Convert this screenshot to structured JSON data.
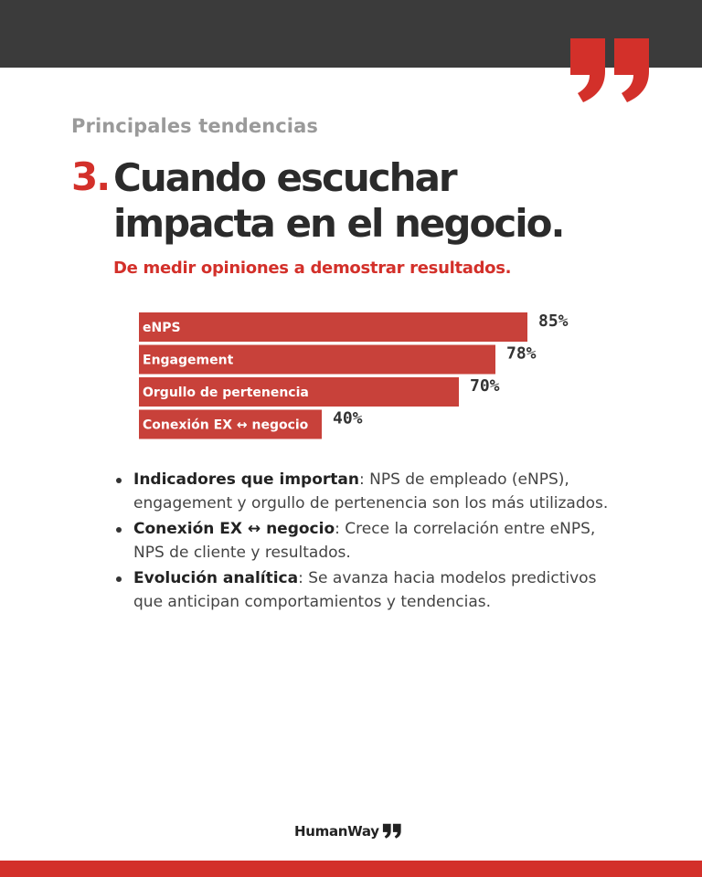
{
  "colors": {
    "accent": "#d3302a",
    "bar": "#c8413a",
    "dark": "#3b3b3b",
    "muted": "#9a9a9a"
  },
  "header": {
    "kicker": "Principales tendencias",
    "number": "3.",
    "title": "Cuando escuchar impacta en el negocio.",
    "subtitle": "De medir opiniones a demostrar resultados."
  },
  "chart_data": {
    "type": "bar",
    "orientation": "horizontal",
    "categories": [
      "eNPS",
      "Engagement",
      "Orgullo de pertenencia",
      "Conexión EX ↔ negocio"
    ],
    "values": [
      85,
      78,
      70,
      40
    ],
    "value_labels": [
      "85%",
      "78%",
      "70%",
      "40%"
    ],
    "unit": "%",
    "xlim": [
      0,
      100
    ],
    "grid": false,
    "legend": "none"
  },
  "bullets": [
    {
      "term": "Indicadores que importan",
      "text": ": NPS de empleado (eNPS), engagement y orgullo de pertenencia son los más utilizados."
    },
    {
      "term": "Conexión EX ↔ negocio",
      "text": ": Crece la correlación entre eNPS, NPS de cliente y resultados."
    },
    {
      "term": "Evolución analítica",
      "text": ": Se avanza hacia modelos predictivos que anticipan comportamientos y tendencias."
    }
  ],
  "footer": {
    "brand_a": "Human",
    "brand_b": "Way",
    "logo_icon": "double-quote-icon"
  },
  "decor": {
    "quote_icon": "closing-quote-icon"
  }
}
